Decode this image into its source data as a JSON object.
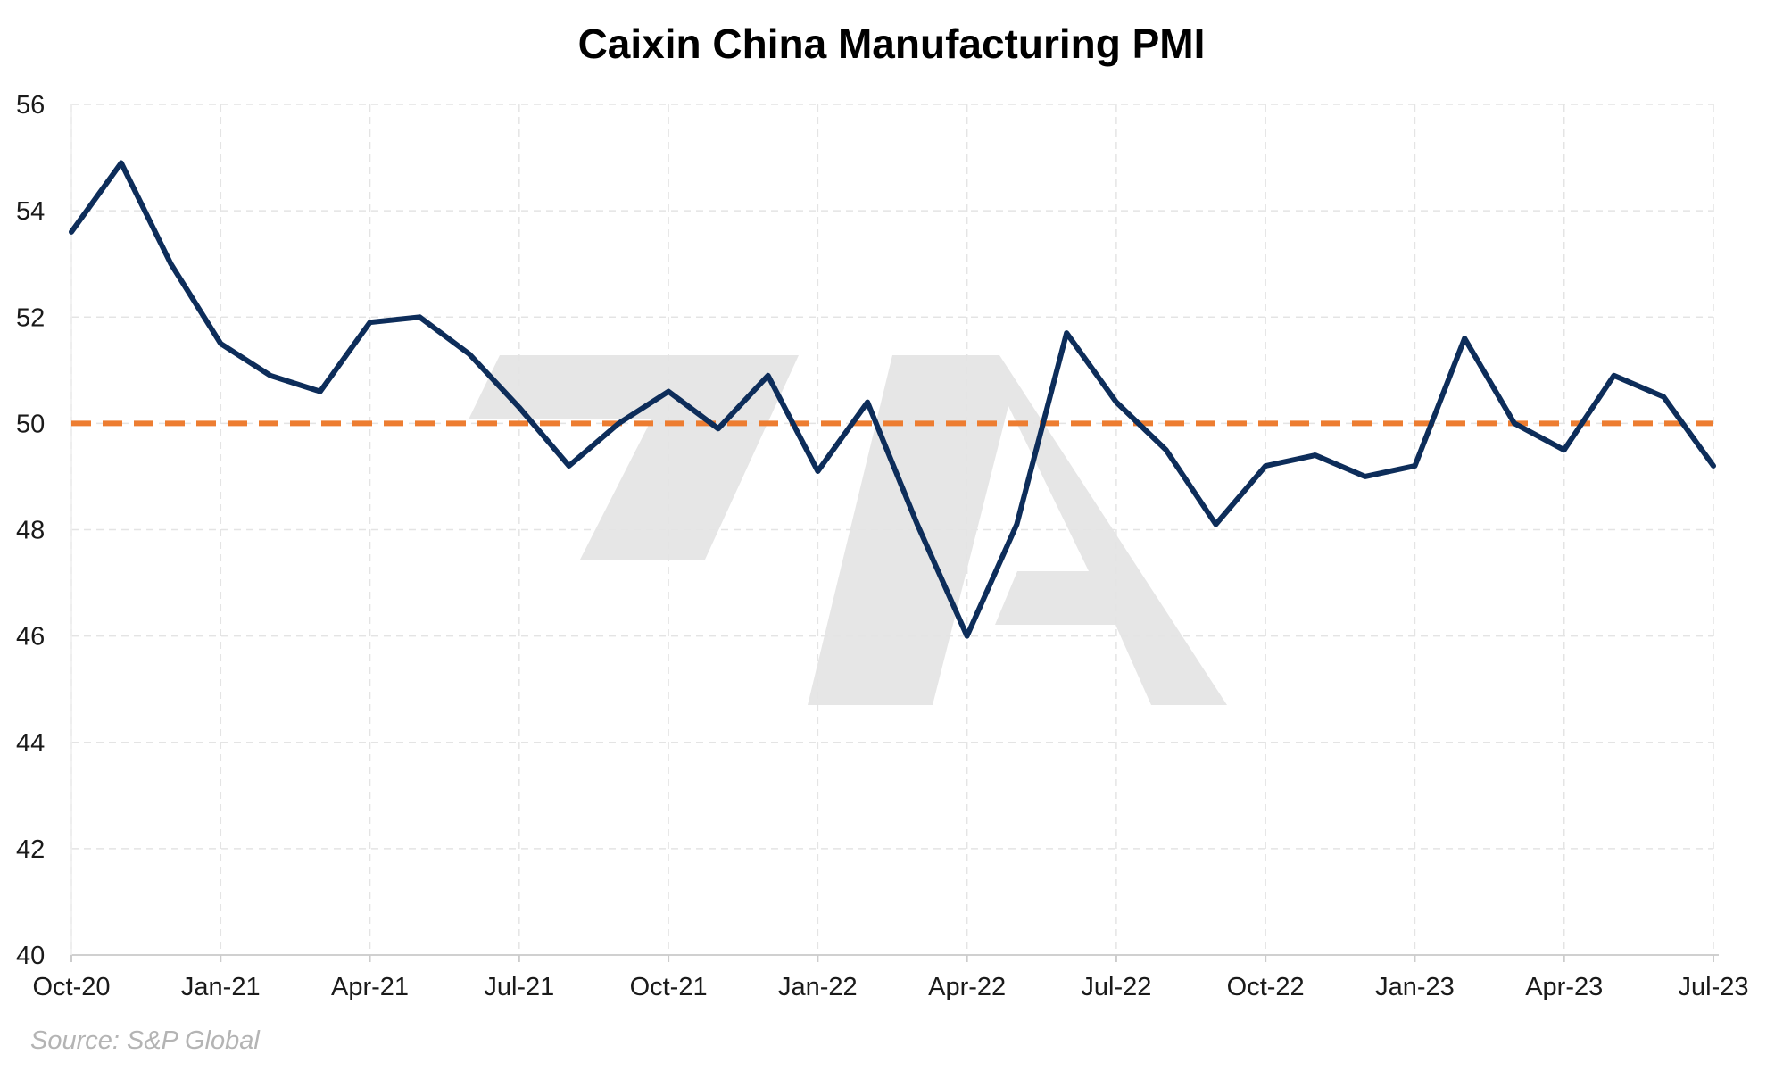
{
  "chart_data": {
    "type": "line",
    "title": "Caixin China Manufacturing PMI",
    "xlabel": "",
    "ylabel": "",
    "x_tick_labels": [
      "Oct-20",
      "Jan-21",
      "Apr-21",
      "Jul-21",
      "Oct-21",
      "Jan-22",
      "Apr-22",
      "Jul-22",
      "Oct-22",
      "Jan-23",
      "Apr-23",
      "Jul-23"
    ],
    "y_tick_labels": [
      "40",
      "42",
      "44",
      "46",
      "48",
      "50",
      "52",
      "54",
      "56"
    ],
    "ylim": [
      40,
      56
    ],
    "xlim": [
      "2020-10",
      "2023-07"
    ],
    "grid": true,
    "x": [
      "2020-10",
      "2020-11",
      "2020-12",
      "2021-01",
      "2021-02",
      "2021-03",
      "2021-04",
      "2021-05",
      "2021-06",
      "2021-07",
      "2021-08",
      "2021-09",
      "2021-10",
      "2021-11",
      "2021-12",
      "2022-01",
      "2022-02",
      "2022-03",
      "2022-04",
      "2022-05",
      "2022-06",
      "2022-07",
      "2022-08",
      "2022-09",
      "2022-10",
      "2022-11",
      "2022-12",
      "2023-01",
      "2023-02",
      "2023-03",
      "2023-04",
      "2023-05",
      "2023-06",
      "2023-07"
    ],
    "series": [
      {
        "values": [
          53.6,
          54.9,
          53.0,
          51.5,
          50.9,
          50.6,
          51.9,
          52.0,
          51.3,
          50.3,
          49.2,
          50.0,
          50.6,
          49.9,
          50.9,
          49.1,
          50.4,
          48.1,
          46.0,
          48.1,
          51.7,
          50.4,
          49.5,
          48.1,
          49.2,
          49.4,
          49.0,
          49.2,
          51.6,
          50.0,
          49.5,
          50.9,
          50.5,
          49.2
        ],
        "color": "#0d2d5a"
      }
    ],
    "reference_line": {
      "value": 50,
      "color": "#ed7d31",
      "style": "dashed"
    },
    "watermark": "7A",
    "source": "Source: S&P Global"
  }
}
